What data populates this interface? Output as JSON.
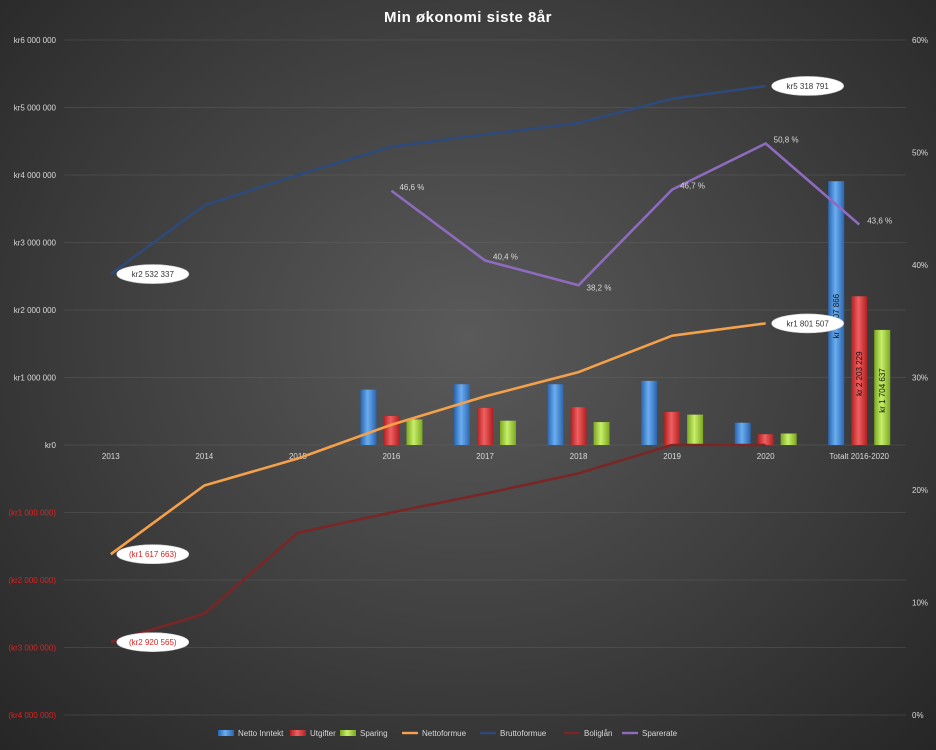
{
  "chart_data": {
    "type": "bar",
    "title": "Min økonomi  siste  8år",
    "categories": [
      "2013",
      "2014",
      "2015",
      "2016",
      "2017",
      "2018",
      "2019",
      "2020",
      "Totalt 2016-2020"
    ],
    "y_left": {
      "min": -4000000,
      "max": 6000000,
      "step": 1000000,
      "ticks": [
        "kr6 000 000",
        "kr5 000 000",
        "kr4 000 000",
        "kr3 000 000",
        "kr2 000 000",
        "kr1 000 000",
        "kr0",
        "(kr1 000 000)",
        "(kr2 000 000)",
        "(kr3 000 000)",
        "(kr4 000 000)"
      ]
    },
    "y_right": {
      "min": 0,
      "max": 0.6,
      "ticks": [
        "60%",
        "50%",
        "40%",
        "30%",
        "20%",
        "10%",
        "0%"
      ]
    },
    "grid": true,
    "legend_position": "bottom",
    "bar_series": [
      {
        "name": "Netto Inntekt",
        "color": "#4a90e2",
        "values": [
          null,
          null,
          null,
          820000,
          900000,
          900000,
          950000,
          330000,
          3907866
        ]
      },
      {
        "name": "Utgifter",
        "color": "#e03c3c",
        "values": [
          null,
          null,
          null,
          430000,
          550000,
          560000,
          490000,
          160000,
          2203229
        ]
      },
      {
        "name": "Sparing",
        "color": "#a5d63c",
        "values": [
          null,
          null,
          null,
          380000,
          360000,
          340000,
          450000,
          170000,
          1704637
        ]
      }
    ],
    "line_series": [
      {
        "name": "Nettoformue",
        "color": "#f5a04a",
        "axis": "left",
        "values": [
          -1617663,
          -600000,
          -200000,
          300000,
          720000,
          1080000,
          1620000,
          1801507,
          null
        ]
      },
      {
        "name": "Bruttoformue",
        "color": "#2e4a7a",
        "axis": "left",
        "values": [
          2532337,
          3550000,
          4000000,
          4420000,
          4600000,
          4770000,
          5130000,
          5318791,
          null
        ]
      },
      {
        "name": "Boliglån",
        "color": "#7a2626",
        "axis": "left",
        "values": [
          -2920565,
          -2500000,
          -1300000,
          -1000000,
          -720000,
          -420000,
          0,
          0,
          null
        ]
      },
      {
        "name": "Sparerate",
        "color": "#8e6bbf",
        "axis": "right",
        "values": [
          null,
          null,
          null,
          0.466,
          0.404,
          0.382,
          0.467,
          0.508,
          0.436
        ]
      }
    ],
    "bar_labels": [
      "kr 3 907 866",
      "kr 2 203 229",
      "kr 1 704 637"
    ],
    "callouts": [
      {
        "text": "kr5 318 791",
        "series": "Bruttoformue",
        "index": 7,
        "negative": false
      },
      {
        "text": "kr2 532 337",
        "series": "Bruttoformue",
        "index": 0,
        "negative": false
      },
      {
        "text": "kr1 801 507",
        "series": "Nettoformue",
        "index": 7,
        "negative": false
      },
      {
        "text": "(kr1 617 663)",
        "series": "Nettoformue",
        "index": 0,
        "negative": true
      },
      {
        "text": "(kr2 920 565)",
        "series": "Boliglån",
        "index": 0,
        "negative": true
      }
    ],
    "rate_labels": [
      "46,6 %",
      "40,4 %",
      "38,2 %",
      "46,7 %",
      "50,8 %",
      "43,6 %"
    ]
  }
}
